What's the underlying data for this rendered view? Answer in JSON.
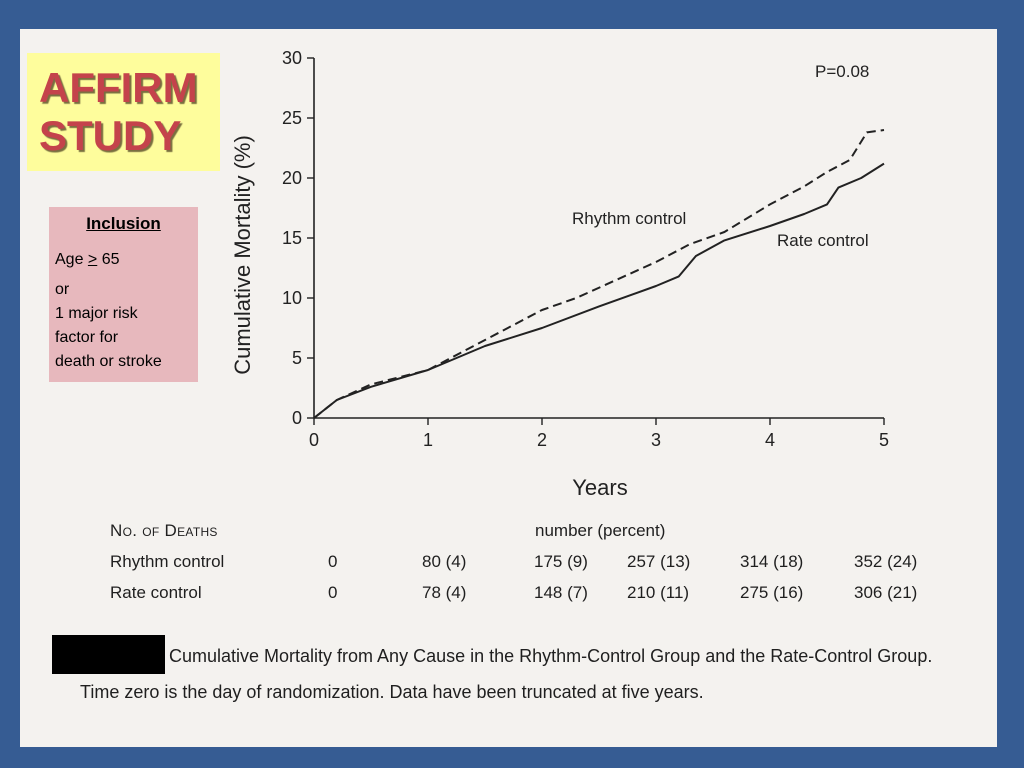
{
  "title": {
    "line1": "AFFIRM",
    "line2": "STUDY"
  },
  "inclusion": {
    "heading": "Inclusion",
    "criterion_prefix": "Age ",
    "criterion_op": ">",
    "criterion_value": " 65",
    "conjunction": "or",
    "alternative_lines": [
      "1 major risk",
      "factor for",
      "death or stroke"
    ]
  },
  "chart_data": {
    "type": "line",
    "xlabel": "Years",
    "ylabel": "Cumulative Mortality (%)",
    "xlim": [
      0,
      5
    ],
    "ylim": [
      0,
      30
    ],
    "xticks": [
      0,
      1,
      2,
      3,
      4,
      5
    ],
    "yticks": [
      0,
      5,
      10,
      15,
      20,
      25,
      30
    ],
    "annotation": "P=0.08",
    "series": [
      {
        "name": "Rhythm control",
        "style": "dashed",
        "x": [
          0,
          0.2,
          0.5,
          1.0,
          1.5,
          2.0,
          2.3,
          3.0,
          3.3,
          3.6,
          4.0,
          4.3,
          4.5,
          4.7,
          4.85,
          5.0
        ],
        "y": [
          0,
          1.5,
          2.8,
          4.0,
          6.5,
          9.0,
          10.0,
          13.0,
          14.5,
          15.5,
          17.8,
          19.3,
          20.5,
          21.5,
          23.8,
          24.0
        ]
      },
      {
        "name": "Rate control",
        "style": "solid",
        "x": [
          0,
          0.2,
          0.5,
          1.0,
          1.5,
          2.0,
          2.5,
          3.0,
          3.2,
          3.35,
          3.6,
          4.0,
          4.3,
          4.5,
          4.6,
          4.8,
          5.0
        ],
        "y": [
          0,
          1.5,
          2.6,
          4.0,
          6.0,
          7.5,
          9.3,
          11.0,
          11.8,
          13.5,
          14.8,
          16.0,
          17.0,
          17.8,
          19.2,
          20.0,
          21.2
        ]
      }
    ]
  },
  "deaths_table": {
    "heading": "No. of Deaths",
    "subheading": "number (percent)",
    "rows": [
      {
        "label": "Rhythm control",
        "values": [
          "0",
          "80 (4)",
          "175 (9)",
          "257 (13)",
          "314 (18)",
          "352 (24)"
        ]
      },
      {
        "label": "Rate control",
        "values": [
          "0",
          "78 (4)",
          "148 (7)",
          "210 (11)",
          "275 (16)",
          "306 (21)"
        ]
      }
    ]
  },
  "caption": {
    "main": "Cumulative Mortality from Any Cause in the Rhythm-Control Group and the Rate-Control Group.",
    "note": "Time zero is the day of randomization. Data have been truncated at five years."
  },
  "colors": {
    "frame": "#365c93",
    "slide": "#f4f2ef",
    "title_box": "#fefd9c",
    "title_text": "#c4434b",
    "inclusion_box": "#e7b8bd",
    "ink": "#222222"
  }
}
